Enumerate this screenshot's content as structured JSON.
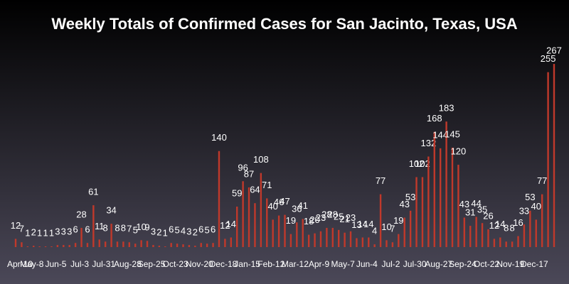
{
  "chart_data": {
    "type": "bar",
    "title": "Weekly Totals of Confirmed Cases for San Jacinto, Texas, USA",
    "color": "#c0392b",
    "ylim": [
      0,
      280
    ],
    "categories": [
      "Apr-10",
      null,
      "May-8",
      null,
      null,
      null,
      "Jun-5",
      null,
      null,
      null,
      "Jul-3",
      null,
      null,
      null,
      "Jul-31",
      null,
      null,
      null,
      "Aug-28",
      null,
      null,
      null,
      "Sep-25",
      null,
      null,
      null,
      "Oct-23",
      null,
      null,
      null,
      "Nov-20",
      null,
      null,
      null,
      "Dec-18",
      null,
      null,
      null,
      "Jan-15",
      null,
      null,
      null,
      "Feb-12",
      null,
      null,
      null,
      "Mar-12",
      null,
      null,
      null,
      "Apr-9",
      null,
      null,
      null,
      "May-7",
      null,
      null,
      null,
      "Jun-4",
      null,
      null,
      null,
      "Jul-2",
      null,
      null,
      null,
      "Jul-30",
      null,
      null,
      null,
      "Aug-27",
      null,
      null,
      null,
      "Sep-24",
      null,
      null,
      null,
      "Oct-22",
      null,
      null,
      null,
      "Nov-19",
      null,
      null,
      null,
      "Dec-17",
      null,
      null,
      null,
      null
    ],
    "values": [
      12,
      7,
      1,
      2,
      1,
      1,
      1,
      3,
      3,
      3,
      6,
      28,
      6,
      61,
      11,
      8,
      34,
      8,
      8,
      7,
      5,
      10,
      9,
      3,
      2,
      1,
      6,
      5,
      4,
      3,
      2,
      6,
      5,
      6,
      140,
      12,
      14,
      59,
      96,
      87,
      64,
      108,
      71,
      40,
      46,
      47,
      19,
      36,
      41,
      18,
      20,
      23,
      28,
      28,
      25,
      21,
      23,
      13,
      14,
      14,
      4,
      77,
      10,
      7,
      19,
      43,
      53,
      102,
      102,
      132,
      168,
      144,
      183,
      145,
      120,
      43,
      31,
      44,
      35,
      26,
      12,
      14,
      8,
      8,
      16,
      33,
      53,
      40,
      77,
      255,
      267
    ]
  }
}
